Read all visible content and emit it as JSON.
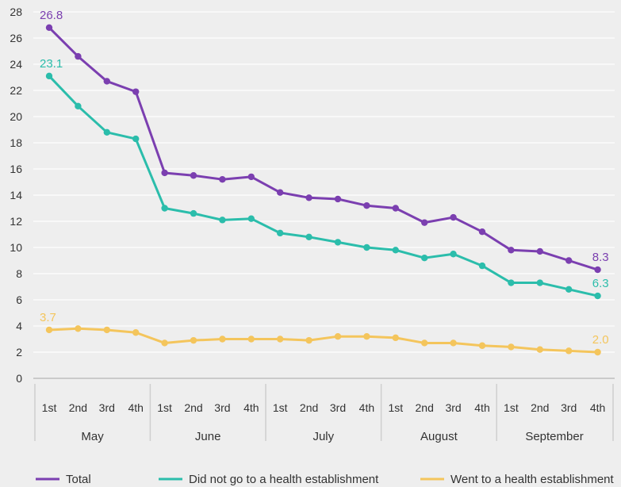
{
  "chart_data": {
    "type": "line",
    "title": "",
    "xlabel": "",
    "ylabel": "",
    "ylim": [
      0,
      28
    ],
    "yticks": [
      0,
      2,
      4,
      6,
      8,
      10,
      12,
      14,
      16,
      18,
      20,
      22,
      24,
      26,
      28
    ],
    "grid": true,
    "legend_position": "bottom",
    "groups": [
      {
        "name": "May",
        "categories": [
          "1st",
          "2nd",
          "3rd",
          "4th"
        ]
      },
      {
        "name": "June",
        "categories": [
          "1st",
          "2nd",
          "3rd",
          "4th"
        ]
      },
      {
        "name": "July",
        "categories": [
          "1st",
          "2nd",
          "3rd",
          "4th"
        ]
      },
      {
        "name": "August",
        "categories": [
          "1st",
          "2nd",
          "3rd",
          "4th"
        ]
      },
      {
        "name": "September",
        "categories": [
          "1st",
          "2nd",
          "3rd",
          "4th"
        ]
      }
    ],
    "series": [
      {
        "name": "Total",
        "color": "#7b3fb0",
        "values": [
          26.8,
          24.6,
          22.7,
          21.9,
          15.7,
          15.5,
          15.2,
          15.4,
          14.2,
          13.8,
          13.7,
          13.2,
          13.0,
          11.9,
          12.3,
          11.2,
          9.8,
          9.7,
          9.0,
          8.3
        ],
        "labels": [
          {
            "index": 0,
            "text": "26.8"
          },
          {
            "index": 19,
            "text": "8.3"
          }
        ]
      },
      {
        "name": "Did not go to a health establishment",
        "color": "#2bbdab",
        "values": [
          23.1,
          20.8,
          18.8,
          18.3,
          13.0,
          12.6,
          12.1,
          12.2,
          11.1,
          10.8,
          10.4,
          10.0,
          9.8,
          9.2,
          9.5,
          8.6,
          7.3,
          7.3,
          6.8,
          6.3
        ],
        "labels": [
          {
            "index": 0,
            "text": "23.1"
          },
          {
            "index": 19,
            "text": "6.3"
          }
        ]
      },
      {
        "name": "Went to a health establishment",
        "color": "#f4c55c",
        "values": [
          3.7,
          3.8,
          3.7,
          3.5,
          2.7,
          2.9,
          3.0,
          3.0,
          3.0,
          2.9,
          3.2,
          3.2,
          3.1,
          2.7,
          2.7,
          2.5,
          2.4,
          2.2,
          2.1,
          2.0
        ],
        "labels": [
          {
            "index": 0,
            "text": "3.7"
          },
          {
            "index": 19,
            "text": "2.0"
          }
        ]
      }
    ]
  }
}
